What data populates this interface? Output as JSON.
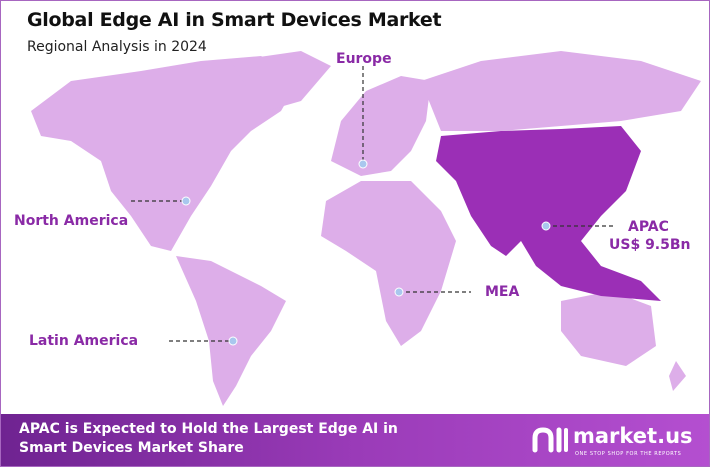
{
  "header": {
    "title": "Global Edge AI in Smart Devices Market",
    "subtitle": "Regional Analysis in 2024"
  },
  "regions": [
    {
      "name": "North America"
    },
    {
      "name": "Europe"
    },
    {
      "name": "APAC",
      "value": "US$ 9.5Bn",
      "highlighted": true
    },
    {
      "name": "MEA"
    },
    {
      "name": "Latin America"
    }
  ],
  "colors": {
    "land": "#ddaee9",
    "highlight": "#9b2fb6",
    "label": "#8a2aa6",
    "banner": "#8a33ad"
  },
  "footer": {
    "text": "APAC is Expected to Hold the Largest Edge AI in Smart Devices Market Share",
    "logo_name": "market.us",
    "logo_tagline": "ONE STOP SHOP FOR THE REPORTS"
  }
}
